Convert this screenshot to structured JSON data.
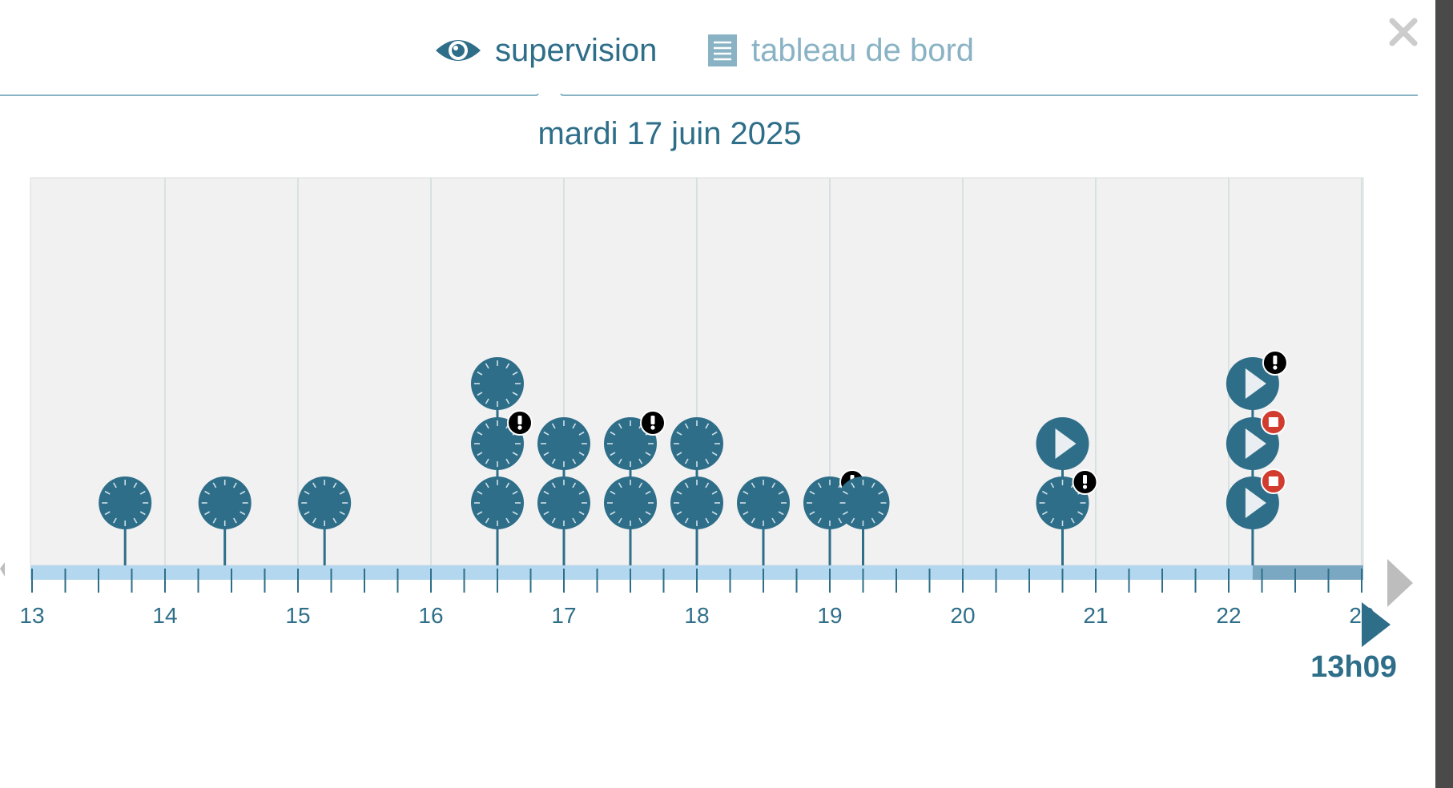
{
  "tabs": [
    {
      "label": "supervision",
      "icon": "eye-icon",
      "active": true
    },
    {
      "label": "tableau de bord",
      "icon": "document-icon",
      "active": false
    }
  ],
  "close_label": "×",
  "date_title": "mardi 17 juin 2025",
  "current_time": "13h09",
  "colors": {
    "accent": "#2e6e89",
    "accent_light": "#89b3c4",
    "axis_bar": "#b3d7ee",
    "axis_bar_future": "#7aa8c2",
    "plot_bg": "#f1f1f1",
    "grid": "#cfdcdc",
    "warning_badge": "#000000",
    "stop_badge": "#d23c2e"
  },
  "timeline": {
    "tick_labels": [
      "13",
      "14",
      "15",
      "16",
      "17",
      "18",
      "19",
      "20",
      "21",
      "22",
      "23"
    ],
    "x_range": [
      13,
      23
    ],
    "future_from": 22.18,
    "stems": [
      {
        "time": 13.7,
        "events": [
          {
            "icon": "clock"
          }
        ]
      },
      {
        "time": 14.45,
        "events": [
          {
            "icon": "clock"
          }
        ]
      },
      {
        "time": 15.2,
        "events": [
          {
            "icon": "clock"
          }
        ]
      },
      {
        "time": 16.5,
        "events": [
          {
            "icon": "clock"
          },
          {
            "icon": "clock",
            "badge": "warning"
          },
          {
            "icon": "clock"
          }
        ]
      },
      {
        "time": 17.0,
        "events": [
          {
            "icon": "clock"
          },
          {
            "icon": "clock"
          }
        ]
      },
      {
        "time": 17.5,
        "events": [
          {
            "icon": "clock"
          },
          {
            "icon": "clock",
            "badge": "warning"
          }
        ]
      },
      {
        "time": 18.0,
        "events": [
          {
            "icon": "clock"
          },
          {
            "icon": "clock"
          }
        ]
      },
      {
        "time": 18.5,
        "events": [
          {
            "icon": "clock"
          }
        ]
      },
      {
        "time": 19.0,
        "events": [
          {
            "icon": "clock",
            "badge": "warning"
          }
        ]
      },
      {
        "time": 19.25,
        "events": [
          {
            "icon": "clock"
          }
        ]
      },
      {
        "time": 20.75,
        "events": [
          {
            "icon": "clock",
            "badge": "warning"
          },
          {
            "icon": "play"
          }
        ]
      },
      {
        "time": 22.18,
        "events": [
          {
            "icon": "play",
            "badge": "stop"
          },
          {
            "icon": "play",
            "badge": "stop"
          },
          {
            "icon": "play",
            "badge": "warning"
          }
        ]
      }
    ]
  }
}
